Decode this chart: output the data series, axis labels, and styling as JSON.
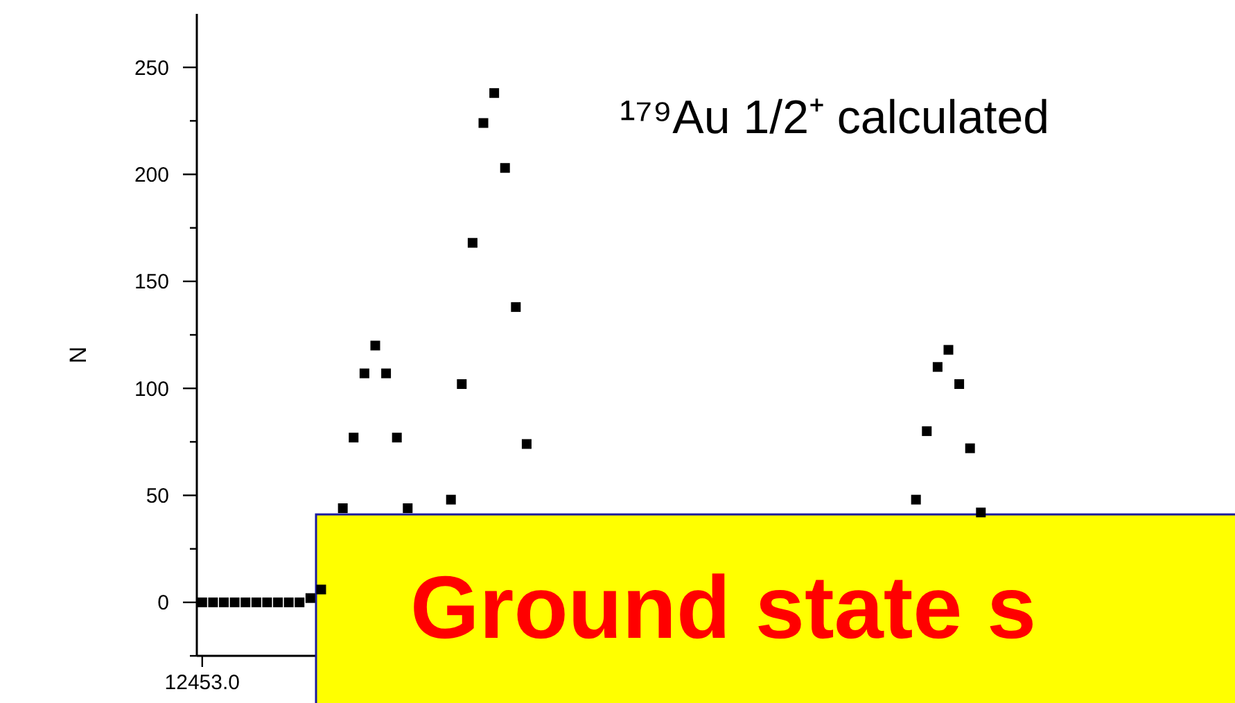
{
  "chart_data": {
    "type": "scatter",
    "title": "¹⁷⁹Au 1/2⁺ calculated",
    "ylabel": "N",
    "marker": "square",
    "grid": false,
    "categories": [
      "12453.0",
      null,
      null,
      null,
      null,
      null,
      null,
      null,
      null,
      null,
      null,
      null,
      null,
      null,
      null,
      null,
      null,
      null,
      null,
      null,
      null,
      null,
      null,
      null,
      null,
      null,
      null,
      null,
      null,
      null,
      null,
      null,
      null,
      null,
      null,
      null,
      null,
      null,
      null,
      null,
      null,
      null,
      null,
      null,
      null,
      null,
      null,
      null,
      null,
      null,
      null,
      null,
      null,
      null,
      null,
      null,
      null,
      null,
      null,
      null,
      null,
      null,
      null,
      null,
      null,
      null,
      null,
      null,
      null,
      null,
      null,
      null,
      null,
      null,
      null,
      null,
      null,
      null,
      null,
      null,
      null,
      null,
      null,
      null,
      null,
      null,
      null,
      null,
      null,
      null,
      null,
      null,
      null,
      null,
      null,
      null
    ],
    "series": [
      {
        "color": "#000000",
        "values": [
          0,
          0,
          0,
          0,
          0,
          0,
          0,
          0,
          0,
          0,
          2,
          6,
          null,
          44,
          77,
          107,
          120,
          107,
          77,
          44,
          null,
          null,
          null,
          48,
          102,
          168,
          224,
          238,
          203,
          138,
          74,
          null,
          null,
          null,
          null,
          null,
          null,
          null,
          null,
          null,
          null,
          null,
          null,
          null,
          null,
          null,
          null,
          null,
          null,
          null,
          null,
          null,
          null,
          null,
          null,
          null,
          null,
          null,
          null,
          null,
          null,
          null,
          null,
          null,
          null,
          null,
          48,
          80,
          110,
          118,
          102,
          72,
          42,
          null,
          null,
          null,
          null,
          null,
          null,
          null,
          null,
          null,
          null,
          null,
          null,
          null,
          null,
          null,
          null,
          null,
          null,
          null,
          null,
          null,
          null,
          null
        ]
      }
    ],
    "ylim": [
      -25,
      275
    ],
    "yticks": [
      {
        "value": -25,
        "label": null
      },
      0,
      {
        "value": 25,
        "label": null
      },
      50,
      {
        "value": 75,
        "label": null
      },
      100,
      {
        "value": 125,
        "label": null
      },
      150,
      {
        "value": 175,
        "label": null
      },
      200,
      {
        "value": 225,
        "label": null
      },
      250
    ],
    "annotations": [
      "Ground state s"
    ]
  }
}
